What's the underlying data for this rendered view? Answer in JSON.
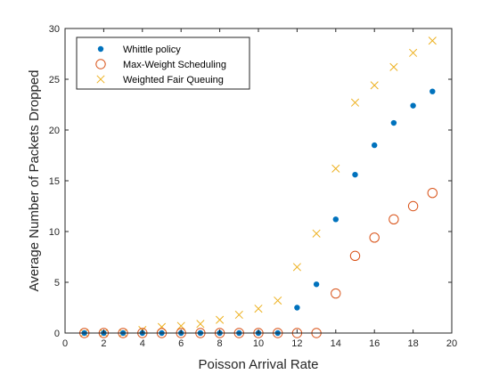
{
  "chart_data": {
    "type": "scatter",
    "title": "",
    "xlabel": "Poisson Arrival Rate",
    "ylabel": "Average Number of Packets Dropped",
    "xlim": [
      0,
      20
    ],
    "ylim": [
      0,
      30
    ],
    "xticks": [
      0,
      2,
      4,
      6,
      8,
      10,
      12,
      14,
      16,
      18,
      20
    ],
    "yticks": [
      0,
      5,
      10,
      15,
      20,
      25,
      30
    ],
    "grid": false,
    "legend_position": "top-left",
    "series": [
      {
        "name": "Whittle policy",
        "marker": "filled-circle",
        "color": "#0072BD",
        "x": [
          1,
          2,
          3,
          4,
          5,
          6,
          7,
          8,
          9,
          10,
          11,
          12,
          13,
          14,
          15,
          16,
          17,
          18,
          19
        ],
        "y": [
          0,
          0,
          0,
          0,
          0,
          0,
          0,
          0,
          0,
          0,
          0,
          2.5,
          4.8,
          11.2,
          15.6,
          18.5,
          20.7,
          22.4,
          23.8
        ]
      },
      {
        "name": "Max-Weight Scheduling",
        "marker": "open-circle",
        "color": "#D95319",
        "x": [
          1,
          2,
          3,
          4,
          5,
          6,
          7,
          8,
          9,
          10,
          11,
          12,
          13,
          14,
          15,
          16,
          17,
          18,
          19
        ],
        "y": [
          0,
          0,
          0,
          0,
          0,
          0,
          0,
          0,
          0,
          0,
          0,
          0,
          0,
          3.9,
          7.6,
          9.4,
          11.2,
          12.5,
          13.8
        ]
      },
      {
        "name": "Weighted Fair Queuing",
        "marker": "x",
        "color": "#EDB120",
        "x": [
          1,
          2,
          3,
          4,
          5,
          6,
          7,
          8,
          9,
          10,
          11,
          12,
          13,
          14,
          15,
          16,
          17,
          18,
          19
        ],
        "y": [
          0,
          0,
          0,
          0.3,
          0.6,
          0.7,
          0.9,
          1.3,
          1.8,
          2.4,
          3.2,
          6.5,
          9.8,
          16.2,
          22.7,
          24.4,
          26.2,
          27.6,
          28.8
        ]
      }
    ]
  }
}
